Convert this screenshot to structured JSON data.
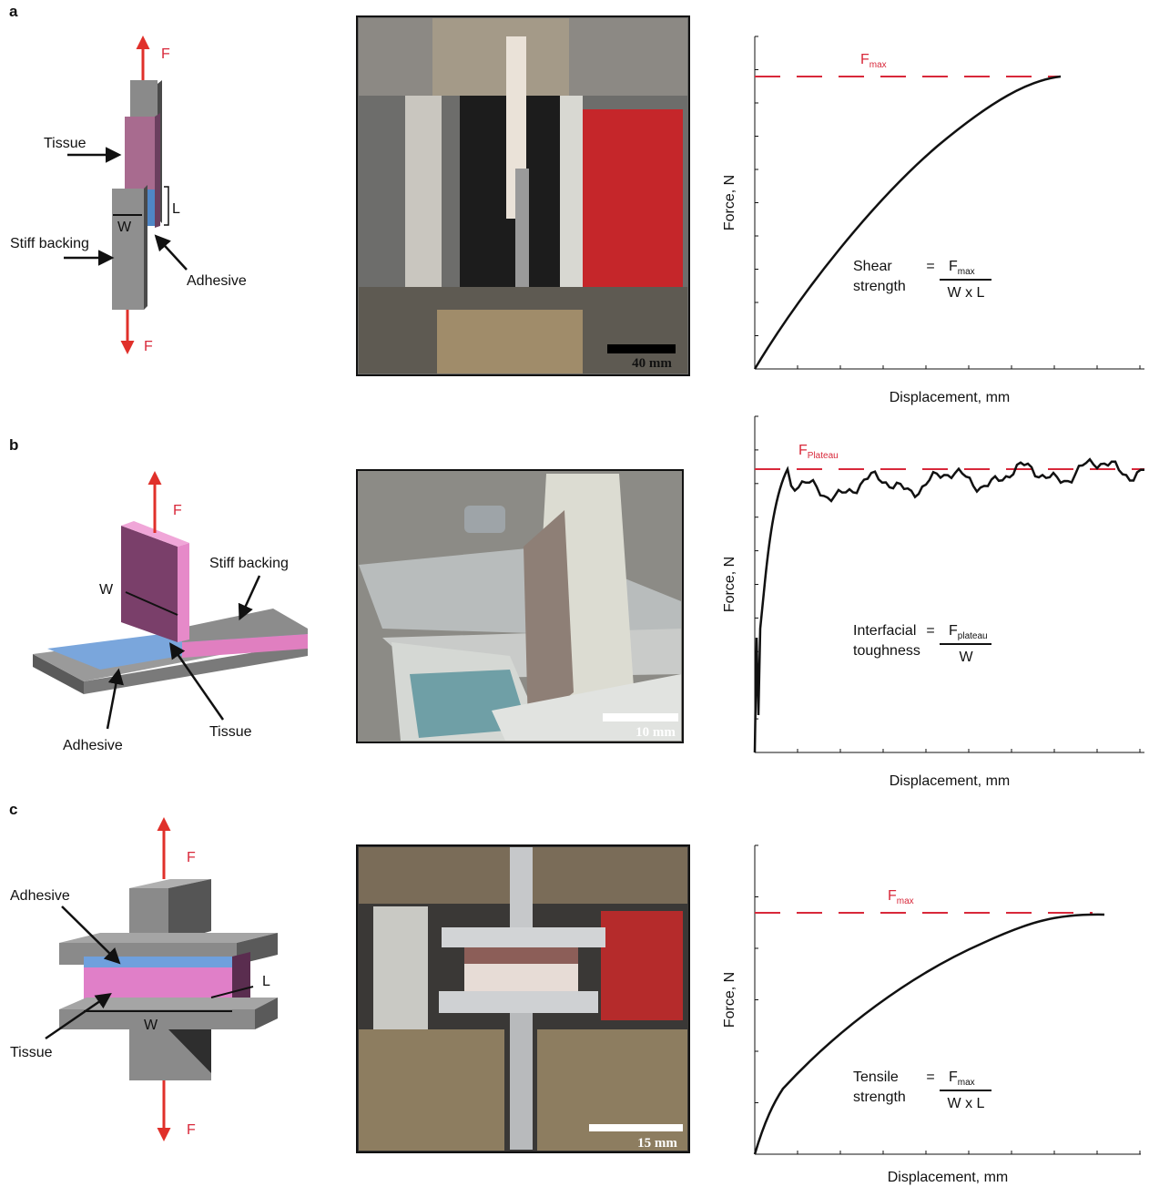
{
  "panels": [
    {
      "label": "a",
      "diagram": {
        "force_top": "F",
        "force_bottom": "F",
        "tissue": "Tissue",
        "stiff_backing": "Stiff backing",
        "adhesive": "Adhesive",
        "width": "W",
        "length": "L"
      },
      "photo": {
        "scale_bar": "40 mm"
      },
      "chart": {
        "y_axis_label": "Force, N",
        "x_axis_label": "Displacement, mm",
        "reference": {
          "symbol": "F",
          "subscript": "max"
        },
        "formula": {
          "name": [
            "Shear",
            "strength"
          ],
          "equals": "=",
          "numerator": {
            "symbol": "F",
            "subscript": "max"
          },
          "denominator": "W x L"
        }
      }
    },
    {
      "label": "b",
      "diagram": {
        "force_top": "F",
        "width": "W",
        "stiff_backing": "Stiff backing",
        "adhesive": "Adhesive",
        "tissue": "Tissue"
      },
      "photo": {
        "scale_bar": "10 mm"
      },
      "chart": {
        "y_axis_label": "Force, N",
        "x_axis_label": "Displacement, mm",
        "reference": {
          "symbol": "F",
          "subscript": "Plateau"
        },
        "formula": {
          "name": [
            "Interfacial",
            "toughness"
          ],
          "equals": "=",
          "numerator": {
            "symbol": "F",
            "subscript": "plateau"
          },
          "denominator": "W"
        }
      }
    },
    {
      "label": "c",
      "diagram": {
        "force_top": "F",
        "force_bottom": "F",
        "adhesive": "Adhesive",
        "tissue": "Tissue",
        "length": "L",
        "width": "W"
      },
      "photo": {
        "scale_bar": "15 mm"
      },
      "chart": {
        "y_axis_label": "Force, N",
        "x_axis_label": "Displacement, mm",
        "reference": {
          "symbol": "F",
          "subscript": "max"
        },
        "formula": {
          "name": [
            "Tensile",
            "strength"
          ],
          "equals": "=",
          "numerator": {
            "symbol": "F",
            "subscript": "max"
          },
          "denominator": "W x L"
        }
      }
    }
  ]
}
